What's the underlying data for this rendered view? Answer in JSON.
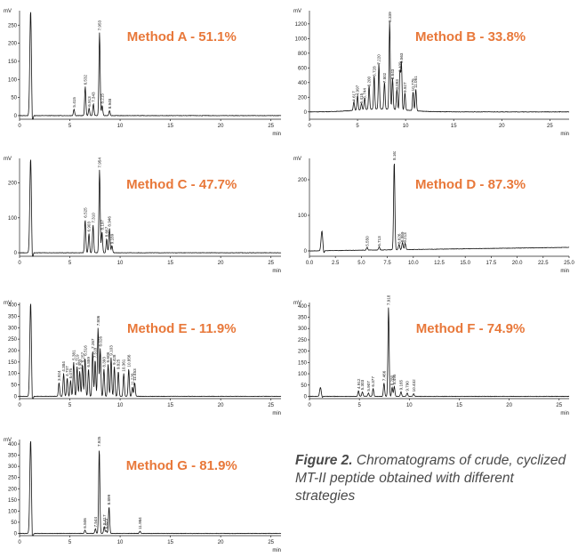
{
  "caption": {
    "label": "Figure 2.",
    "text": "Chromatograms of crude, cyclized MT-II peptide obtained with different strategies"
  },
  "colors": {
    "title": "#e8783a",
    "trace": "#111111",
    "axis": "#222222"
  },
  "chart_data": [
    {
      "id": "A",
      "type": "line",
      "title": "Method A - 51.1%",
      "ylabel": "mV",
      "xlabel": "min",
      "xlim": [
        0,
        26
      ],
      "ylim": [
        -10,
        290
      ],
      "xticks": [
        0,
        5,
        10,
        15,
        20,
        25
      ],
      "yticks": [
        0,
        50,
        100,
        150,
        200,
        250
      ],
      "solvent_peak": {
        "x": 1.1,
        "y": 290
      },
      "peaks": [
        {
          "x": 5.415,
          "y": 18,
          "label": "5.415"
        },
        {
          "x": 6.532,
          "y": 80,
          "label": "6.532"
        },
        {
          "x": 6.913,
          "y": 20,
          "label": "6.913"
        },
        {
          "x": 7.343,
          "y": 32,
          "label": "7.343"
        },
        {
          "x": 7.953,
          "y": 230,
          "label": "7.953"
        },
        {
          "x": 8.215,
          "y": 28,
          "label": "8.215"
        },
        {
          "x": 8.948,
          "y": 14,
          "label": "8.948"
        }
      ]
    },
    {
      "id": "B",
      "type": "line",
      "title": "Method B - 33.8%",
      "ylabel": "mV",
      "xlabel": "min",
      "xlim": [
        0,
        27
      ],
      "ylim": [
        -100,
        1380
      ],
      "xticks": [
        0,
        5,
        10,
        15,
        20,
        25
      ],
      "yticks": [
        0,
        200,
        400,
        600,
        800,
        1000,
        1200
      ],
      "solvent_peak": null,
      "peaks": [
        {
          "x": 4.617,
          "y": 120,
          "label": "4.617"
        },
        {
          "x": 4.997,
          "y": 200,
          "label": "4.997"
        },
        {
          "x": 5.415,
          "y": 90,
          "label": "5.415"
        },
        {
          "x": 5.744,
          "y": 160,
          "label": "5.744"
        },
        {
          "x": 6.2,
          "y": 320,
          "label": "6.200"
        },
        {
          "x": 6.728,
          "y": 460,
          "label": "6.728"
        },
        {
          "x": 7.22,
          "y": 620,
          "label": "7.220"
        },
        {
          "x": 7.802,
          "y": 370,
          "label": "7.802"
        },
        {
          "x": 8.339,
          "y": 1200,
          "label": "8.339"
        },
        {
          "x": 8.643,
          "y": 420,
          "label": "8.643"
        },
        {
          "x": 9.093,
          "y": 280,
          "label": "9.093"
        },
        {
          "x": 9.409,
          "y": 520,
          "label": "9.409"
        },
        {
          "x": 9.563,
          "y": 640,
          "label": "9.563"
        },
        {
          "x": 9.927,
          "y": 240,
          "label": "9.927"
        },
        {
          "x": 10.775,
          "y": 260,
          "label": "10.775"
        },
        {
          "x": 11.061,
          "y": 300,
          "label": "11.061"
        }
      ]
    },
    {
      "id": "C",
      "type": "line",
      "title": "Method C - 47.7%",
      "ylabel": "mV",
      "xlabel": "min",
      "xlim": [
        0,
        26
      ],
      "ylim": [
        -10,
        270
      ],
      "xticks": [
        0,
        5,
        10,
        15,
        20,
        25
      ],
      "yticks": [
        0,
        100,
        200
      ],
      "solvent_peak": {
        "x": 1.1,
        "y": 270
      },
      "peaks": [
        {
          "x": 6.525,
          "y": 95,
          "label": "6.525"
        },
        {
          "x": 6.903,
          "y": 55,
          "label": "6.903"
        },
        {
          "x": 7.31,
          "y": 80,
          "label": "7.310"
        },
        {
          "x": 7.954,
          "y": 238,
          "label": "7.954"
        },
        {
          "x": 8.197,
          "y": 60,
          "label": "8.197"
        },
        {
          "x": 8.667,
          "y": 40,
          "label": "8.667"
        },
        {
          "x": 8.946,
          "y": 70,
          "label": "8.946"
        },
        {
          "x": 9.189,
          "y": 20,
          "label": "9.189"
        }
      ]
    },
    {
      "id": "D",
      "type": "line",
      "title": "Method D - 87.3%",
      "ylabel": "mV",
      "xlabel": "min",
      "xlim": [
        0,
        25
      ],
      "ylim": [
        -15,
        260
      ],
      "xticks": [
        0,
        2.5,
        5.0,
        7.5,
        10.0,
        12.5,
        15.0,
        17.5,
        20.0,
        22.5,
        25.0
      ],
      "xticklabels": [
        "0.0",
        "2.5",
        "5.0",
        "7.5",
        "10.0",
        "12.5",
        "15.0",
        "17.5",
        "20.0",
        "22.5",
        "25.0"
      ],
      "yticks": [
        0,
        100,
        200
      ],
      "solvent_peak": {
        "x": 1.2,
        "y": 55
      },
      "peaks": [
        {
          "x": 5.55,
          "y": 8,
          "label": "5.550"
        },
        {
          "x": 6.713,
          "y": 8,
          "label": "6.713"
        },
        {
          "x": 8.163,
          "y": 250,
          "label": "8.163"
        },
        {
          "x": 8.626,
          "y": 15,
          "label": "8.626"
        },
        {
          "x": 8.959,
          "y": 20,
          "label": "8.959"
        },
        {
          "x": 9.213,
          "y": 18,
          "label": "9.213"
        }
      ]
    },
    {
      "id": "E",
      "type": "line",
      "title": "Method E - 11.9%",
      "ylabel": "mV",
      "xlabel": "min",
      "xlim": [
        0,
        26
      ],
      "ylim": [
        -10,
        410
      ],
      "xticks": [
        0,
        5,
        10,
        15,
        20,
        25
      ],
      "yticks": [
        0,
        50,
        100,
        150,
        200,
        250,
        300,
        350,
        400
      ],
      "solvent_peak": {
        "x": 1.1,
        "y": 410
      },
      "peaks": [
        {
          "x": 3.924,
          "y": 60,
          "label": "3.924"
        },
        {
          "x": 4.384,
          "y": 100,
          "label": "4.384"
        },
        {
          "x": 4.737,
          "y": 80,
          "label": "4.737"
        },
        {
          "x": 5.075,
          "y": 70,
          "label": "5.075"
        },
        {
          "x": 5.381,
          "y": 150,
          "label": "5.381"
        },
        {
          "x": 5.719,
          "y": 130,
          "label": "5.719"
        },
        {
          "x": 5.983,
          "y": 110,
          "label": "5.983"
        },
        {
          "x": 6.257,
          "y": 140,
          "label": "6.257"
        },
        {
          "x": 6.516,
          "y": 170,
          "label": "6.516"
        },
        {
          "x": 6.859,
          "y": 120,
          "label": "6.859"
        },
        {
          "x": 7.267,
          "y": 200,
          "label": "7.267"
        },
        {
          "x": 7.518,
          "y": 160,
          "label": "7.518"
        },
        {
          "x": 7.806,
          "y": 300,
          "label": "7.806"
        },
        {
          "x": 8.026,
          "y": 210,
          "label": "8.026"
        },
        {
          "x": 8.393,
          "y": 120,
          "label": "8.393"
        },
        {
          "x": 8.808,
          "y": 140,
          "label": "8.808"
        },
        {
          "x": 9.103,
          "y": 170,
          "label": "9.103"
        },
        {
          "x": 9.428,
          "y": 130,
          "label": "9.428"
        },
        {
          "x": 9.825,
          "y": 110,
          "label": "9.825"
        },
        {
          "x": 10.361,
          "y": 100,
          "label": "10.361"
        },
        {
          "x": 10.856,
          "y": 120,
          "label": "10.856"
        },
        {
          "x": 11.226,
          "y": 40,
          "label": "11.226"
        },
        {
          "x": 11.453,
          "y": 60,
          "label": "11.453"
        }
      ]
    },
    {
      "id": "F",
      "type": "line",
      "title": "Method F - 74.9%",
      "ylabel": "mV",
      "xlabel": "min",
      "xlim": [
        0,
        26
      ],
      "ylim": [
        -10,
        415
      ],
      "xticks": [
        0,
        5,
        10,
        15,
        20,
        25
      ],
      "yticks": [
        0,
        50,
        100,
        150,
        200,
        250,
        300,
        350,
        400
      ],
      "solvent_peak": {
        "x": 1.1,
        "y": 40
      },
      "peaks": [
        {
          "x": 4.912,
          "y": 25,
          "label": "4.912"
        },
        {
          "x": 5.303,
          "y": 20,
          "label": "5.303"
        },
        {
          "x": 5.907,
          "y": 15,
          "label": "5.907"
        },
        {
          "x": 6.377,
          "y": 35,
          "label": "6.377"
        },
        {
          "x": 7.466,
          "y": 60,
          "label": "7.466"
        },
        {
          "x": 7.918,
          "y": 395,
          "label": "7.918"
        },
        {
          "x": 8.28,
          "y": 40,
          "label": "8.280"
        },
        {
          "x": 8.495,
          "y": 45,
          "label": "8.495"
        },
        {
          "x": 9.165,
          "y": 20,
          "label": "9.165"
        },
        {
          "x": 9.79,
          "y": 15,
          "label": "9.790"
        },
        {
          "x": 10.432,
          "y": 12,
          "label": "10.432"
        }
      ]
    },
    {
      "id": "G",
      "type": "line",
      "title": "Method G - 81.9%",
      "ylabel": "mV",
      "xlabel": "min",
      "xlim": [
        0,
        26
      ],
      "ylim": [
        -10,
        420
      ],
      "xticks": [
        0,
        5,
        10,
        15,
        20,
        25
      ],
      "yticks": [
        0,
        50,
        100,
        150,
        200,
        250,
        300,
        350,
        400
      ],
      "solvent_peak": {
        "x": 1.1,
        "y": 420
      },
      "peaks": [
        {
          "x": 6.506,
          "y": 15,
          "label": "6.506"
        },
        {
          "x": 7.544,
          "y": 20,
          "label": "7.544"
        },
        {
          "x": 7.925,
          "y": 380,
          "label": "7.925"
        },
        {
          "x": 8.417,
          "y": 30,
          "label": "8.417"
        },
        {
          "x": 8.623,
          "y": 12,
          "label": "8.623"
        },
        {
          "x": 8.899,
          "y": 120,
          "label": "8.899"
        },
        {
          "x": 11.984,
          "y": 10,
          "label": "11.984"
        }
      ]
    }
  ]
}
